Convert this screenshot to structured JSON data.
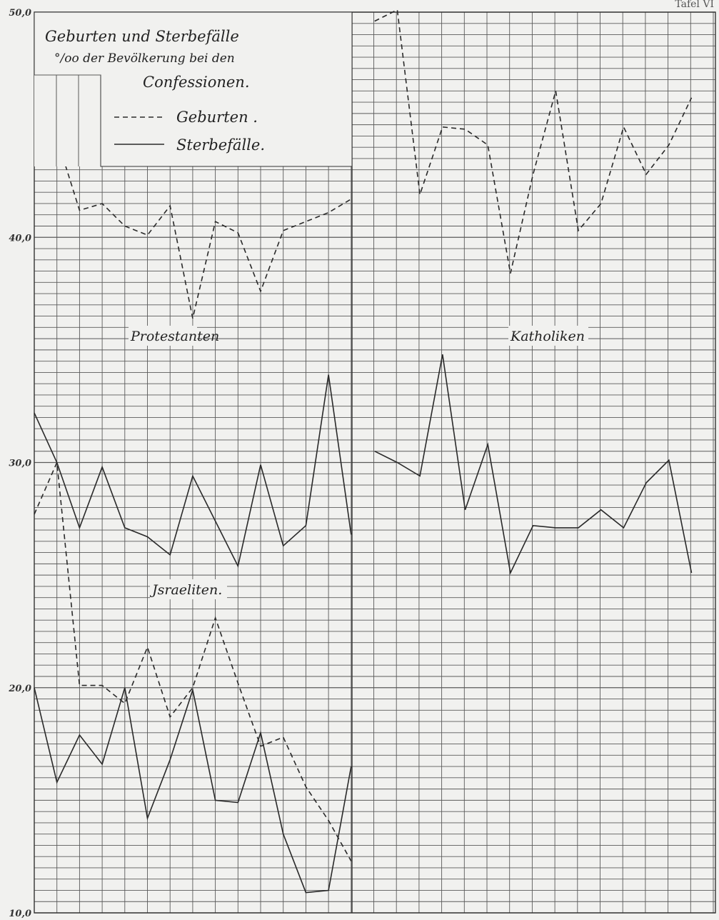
{
  "corner_text": "Tafel VI",
  "legend": {
    "title": "Geburten und Sterbefälle",
    "subtitle": "°/oo der Bevölkerung bei den",
    "subtitle2": "Confessionen.",
    "births_label": "Geburten .",
    "deaths_label": "Sterbefälle."
  },
  "colors": {
    "line": "#2a2a2a",
    "grid": "#5a5a5a",
    "background": "#f1f1ef"
  },
  "chart_data": {
    "type": "line",
    "ylim": [
      10,
      50
    ],
    "yticks": [
      "10,0",
      "20,0",
      "30,0",
      "40,0",
      "50,0"
    ],
    "grid": true,
    "groups": [
      {
        "label": "Protestanten",
        "series": [
          {
            "name": "Geburten",
            "style": "dashed",
            "values": [
              44.6,
              44.4,
              41.2,
              41.5,
              40.5,
              40.1,
              41.4,
              36.4,
              40.7,
              40.2,
              37.6,
              40.3,
              40.7,
              41.1,
              41.7
            ]
          },
          {
            "name": "Sterbefälle",
            "style": "solid",
            "values": [
              32.2,
              30.0,
              27.1,
              29.8,
              27.1,
              26.7,
              25.9,
              29.4,
              27.4,
              25.4,
              29.9,
              26.3,
              27.2,
              33.9,
              26.8
            ]
          }
        ]
      },
      {
        "label": "Katholiken",
        "series": [
          {
            "name": "Geburten",
            "style": "dashed",
            "values": [
              49.6,
              50.1,
              41.9,
              44.9,
              44.8,
              44.1,
              38.4,
              42.8,
              46.5,
              40.3,
              41.5,
              44.9,
              42.8,
              44.1,
              46.2
            ]
          },
          {
            "name": "Sterbefälle",
            "style": "solid",
            "values": [
              30.5,
              30.0,
              29.4,
              34.8,
              27.9,
              30.8,
              25.1,
              27.2,
              27.1,
              27.1,
              27.9,
              27.1,
              29.1,
              30.1,
              25.1
            ]
          }
        ]
      },
      {
        "label": "Jsraeliten.",
        "series": [
          {
            "name": "Geburten",
            "style": "dashed",
            "values": [
              27.7,
              30.0,
              20.1,
              20.1,
              19.3,
              21.8,
              18.7,
              20.0,
              23.1,
              20.2,
              17.4,
              17.8,
              15.6,
              14.1,
              12.3
            ]
          },
          {
            "name": "Sterbefälle",
            "style": "solid",
            "values": [
              20.0,
              15.8,
              17.9,
              16.6,
              20.0,
              14.2,
              16.8,
              19.9,
              15.0,
              14.9,
              18.0,
              13.5,
              10.9,
              11.0,
              16.5
            ]
          }
        ]
      }
    ]
  }
}
